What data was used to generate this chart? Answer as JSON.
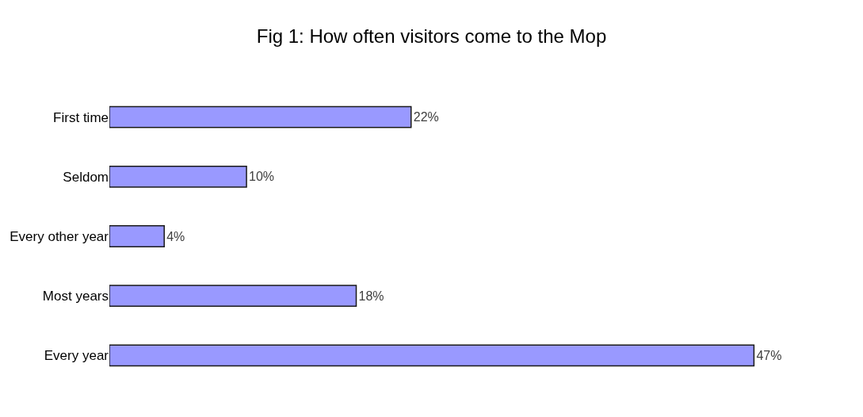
{
  "chart_data": {
    "type": "bar",
    "orientation": "horizontal",
    "title": "Fig 1: How often visitors come to the Mop",
    "categories": [
      "First time",
      "Seldom",
      "Every other year",
      "Most years",
      "Every year"
    ],
    "values": [
      22,
      10,
      4,
      18,
      47
    ],
    "value_labels": [
      "22%",
      "10%",
      "4%",
      "18%",
      "47%"
    ],
    "color": "#9999ff",
    "legend": false
  }
}
